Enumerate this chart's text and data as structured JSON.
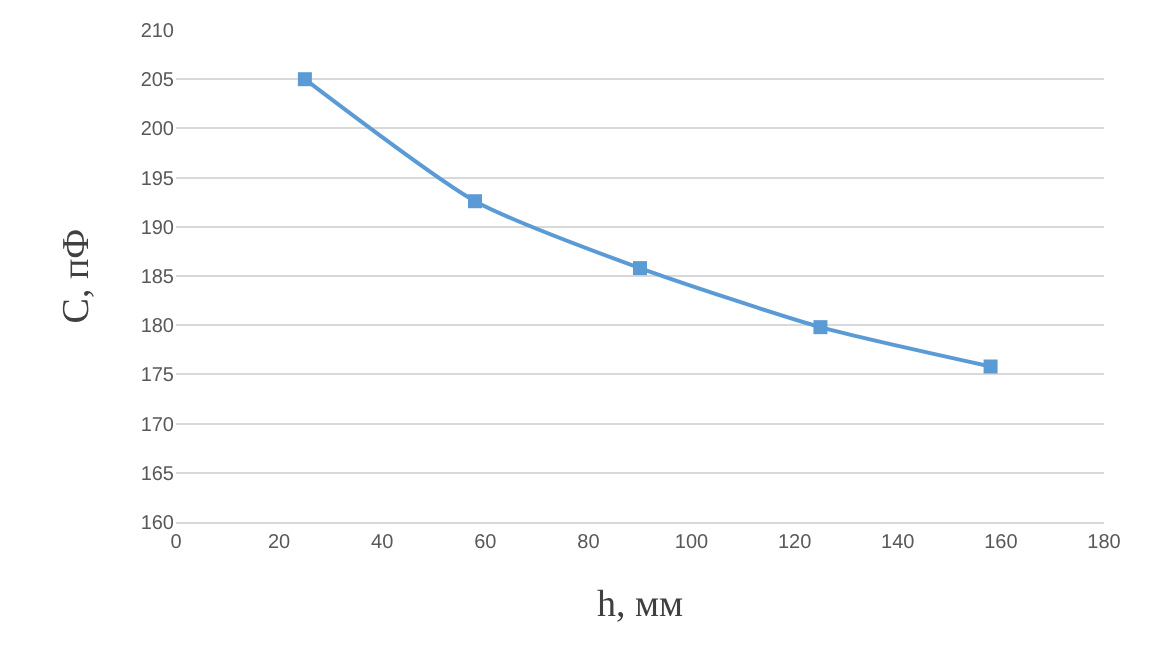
{
  "chart_data": {
    "type": "line",
    "xlabel": "h, мм",
    "ylabel": "C, пФ",
    "x": [
      25,
      58,
      90,
      125,
      158
    ],
    "series": [
      {
        "color": "#5b9bd5",
        "values": [
          205,
          192.6,
          185.8,
          179.8,
          175.8
        ]
      }
    ],
    "xlim": [
      0,
      180
    ],
    "xticks": [
      0,
      20,
      40,
      60,
      80,
      100,
      120,
      140,
      160,
      180
    ],
    "ylim": [
      160,
      210
    ],
    "yticks": [
      160,
      165,
      170,
      175,
      180,
      185,
      190,
      195,
      200,
      205,
      210
    ],
    "grid": "y",
    "marker": "square",
    "line_style": "solid",
    "legend": false
  }
}
